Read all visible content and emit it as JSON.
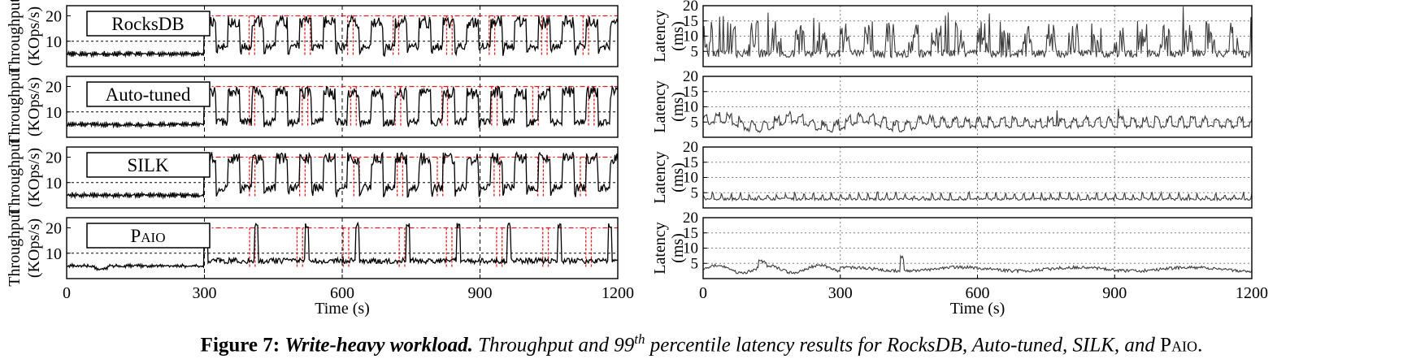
{
  "colors": {
    "series_line": "#000000",
    "latency_line": "#3a3a3a",
    "rate_limit": "#e41a1c",
    "grid": "#808080"
  },
  "chart_data": [
    {
      "type": "line",
      "panel": "throughput",
      "label": "RocksDB",
      "ylabel": [
        "Throughput",
        "(KOps/s)"
      ],
      "xlim": [
        0,
        1200
      ],
      "ylim": [
        0,
        24
      ],
      "yticks": [
        "10",
        "20"
      ],
      "baseline": 5,
      "burst_high": 20,
      "burst_low": 8,
      "red_rate_limit": 20,
      "black_reference": 10,
      "grid": true
    },
    {
      "type": "line",
      "panel": "throughput",
      "label": "Auto-tuned",
      "ylabel": [
        "Throughput",
        "(KOps/s)"
      ],
      "xlim": [
        0,
        1200
      ],
      "ylim": [
        0,
        24
      ],
      "yticks": [
        "10",
        "20"
      ],
      "baseline": 5,
      "burst_high": 20,
      "burst_low": 6,
      "red_rate_limit": 20,
      "black_reference": 10,
      "grid": true
    },
    {
      "type": "line",
      "panel": "throughput",
      "label": "SILK",
      "ylabel": [
        "Throughput",
        "(KOps/s)"
      ],
      "xlim": [
        0,
        1200
      ],
      "ylim": [
        0,
        24
      ],
      "yticks": [
        "10",
        "20"
      ],
      "baseline": 5,
      "burst_high": 22,
      "burst_low": 8,
      "red_rate_limit": 20,
      "black_reference": 10,
      "grid": true
    },
    {
      "type": "line",
      "panel": "throughput",
      "label_big": "P",
      "label_small": "AIO",
      "ylabel": [
        "Throughput",
        "(KOps/s)"
      ],
      "xlim": [
        0,
        1200
      ],
      "ylim": [
        0,
        24
      ],
      "yticks": [
        "10",
        "20"
      ],
      "baseline": 5,
      "burst_high": 20,
      "burst_low": 7,
      "red_rate_limit": 20,
      "black_reference": 10,
      "grid": true
    },
    {
      "type": "line",
      "panel": "latency",
      "series": "RocksDB",
      "ylabel": [
        "Latency",
        "(ms)"
      ],
      "xlim": [
        0,
        1200
      ],
      "ylim": [
        0,
        20
      ],
      "yticks": [
        "5",
        "10",
        "15",
        "20"
      ],
      "base": 3,
      "peak": 12,
      "grid": true
    },
    {
      "type": "line",
      "panel": "latency",
      "series": "Auto-tuned",
      "ylabel": [
        "Latency",
        "(ms)"
      ],
      "xlim": [
        0,
        1200
      ],
      "ylim": [
        0,
        20
      ],
      "yticks": [
        "5",
        "10",
        "15",
        "20"
      ],
      "base": 3,
      "peak": 6,
      "grid": true
    },
    {
      "type": "line",
      "panel": "latency",
      "series": "SILK",
      "ylabel": [
        "Latency",
        "(ms)"
      ],
      "xlim": [
        0,
        1200
      ],
      "ylim": [
        0,
        20
      ],
      "yticks": [
        "5",
        "10",
        "15",
        "20"
      ],
      "base": 2.5,
      "peak": 4,
      "grid": true
    },
    {
      "type": "line",
      "panel": "latency",
      "series": "PAIO",
      "ylabel": [
        "Latency",
        "(ms)"
      ],
      "xlim": [
        0,
        1200
      ],
      "ylim": [
        0,
        20
      ],
      "yticks": [
        "5",
        "10",
        "15",
        "20"
      ],
      "base": 3,
      "peak": 4,
      "grid": true
    }
  ],
  "axes": {
    "xticks": [
      "0",
      "300",
      "600",
      "900",
      "1200"
    ],
    "xlabel": "Time (s)"
  },
  "caption": {
    "label": "Figure 7:",
    "title": "Write-heavy workload.",
    "text_before": "Throughput and 99",
    "sup": "th",
    "text_after": "percentile latency results for RocksDB, Auto-tuned, SILK, and",
    "paio_big": "P",
    "paio_small": "AIO",
    "end": "."
  }
}
